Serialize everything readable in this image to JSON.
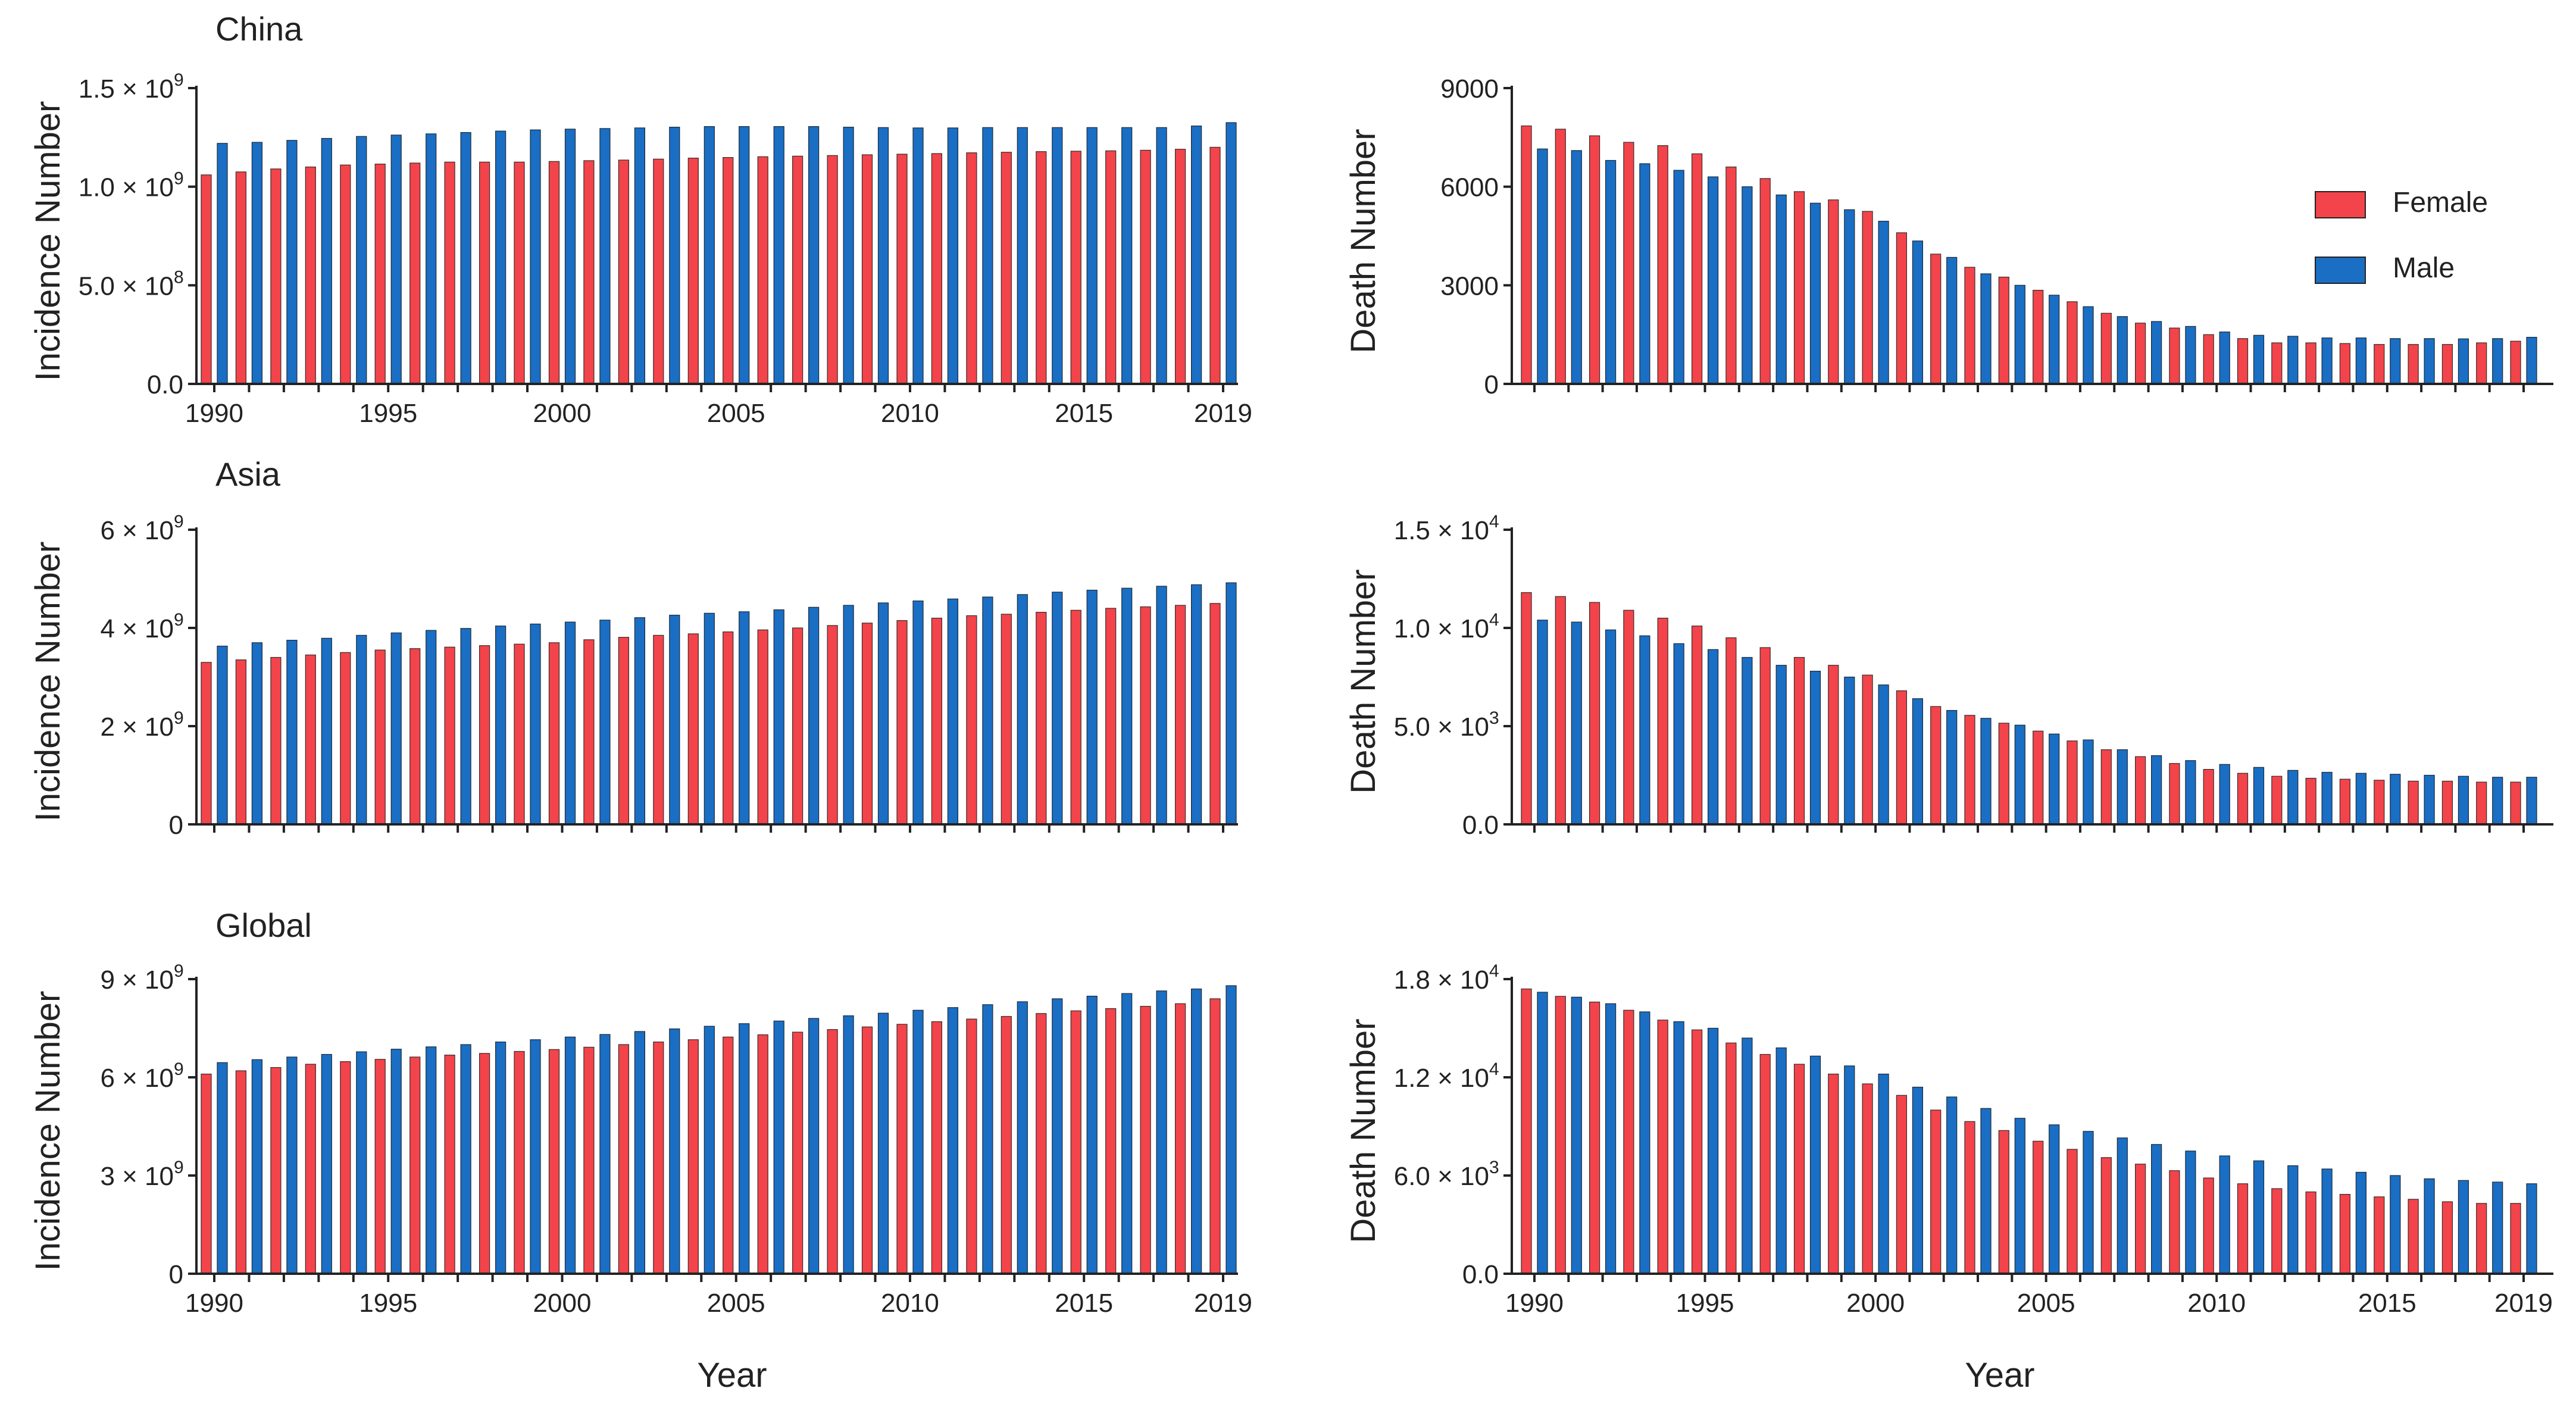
{
  "colors": {
    "female": "#f2444a",
    "male": "#1a6ec4",
    "axis": "#222222"
  },
  "legend": {
    "female": "Female",
    "male": "Male"
  },
  "x_axis_title": "Year",
  "chart_data": [
    {
      "type": "bar",
      "title": "China",
      "ylabel": "Incidence Number",
      "x": [
        1990,
        1991,
        1992,
        1993,
        1994,
        1995,
        1996,
        1997,
        1998,
        1999,
        2000,
        2001,
        2002,
        2003,
        2004,
        2005,
        2006,
        2007,
        2008,
        2009,
        2010,
        2011,
        2012,
        2013,
        2014,
        2015,
        2016,
        2017,
        2018,
        2019
      ],
      "x_ticks": [
        "1990",
        "1995",
        "2000",
        "2005",
        "2010",
        "2015",
        "2019"
      ],
      "ylim": [
        0,
        1500000000
      ],
      "y_ticks": [
        {
          "value": 0,
          "label": "0.0",
          "exp": ""
        },
        {
          "value": 500000000,
          "label": "5.0 × 10",
          "exp": "8"
        },
        {
          "value": 1000000000,
          "label": "1.0 × 10",
          "exp": "9"
        },
        {
          "value": 1500000000,
          "label": "1.5 × 10",
          "exp": "9"
        }
      ],
      "series": [
        {
          "name": "Female",
          "values": [
            1060000000,
            1075000000,
            1090000000,
            1100000000,
            1110000000,
            1115000000,
            1120000000,
            1125000000,
            1125000000,
            1125000000,
            1128000000,
            1132000000,
            1135000000,
            1140000000,
            1145000000,
            1148000000,
            1152000000,
            1155000000,
            1158000000,
            1162000000,
            1165000000,
            1168000000,
            1172000000,
            1175000000,
            1178000000,
            1180000000,
            1182000000,
            1185000000,
            1190000000,
            1200000000
          ]
        },
        {
          "name": "Male",
          "values": [
            1220000000,
            1225000000,
            1235000000,
            1245000000,
            1255000000,
            1262000000,
            1268000000,
            1275000000,
            1282000000,
            1288000000,
            1292000000,
            1295000000,
            1298000000,
            1302000000,
            1305000000,
            1305000000,
            1305000000,
            1305000000,
            1302000000,
            1300000000,
            1298000000,
            1298000000,
            1300000000,
            1300000000,
            1300000000,
            1300000000,
            1300000000,
            1300000000,
            1308000000,
            1325000000
          ]
        }
      ]
    },
    {
      "type": "bar",
      "title": "",
      "ylabel": "Death Number",
      "x": [
        1990,
        1991,
        1992,
        1993,
        1994,
        1995,
        1996,
        1997,
        1998,
        1999,
        2000,
        2001,
        2002,
        2003,
        2004,
        2005,
        2006,
        2007,
        2008,
        2009,
        2010,
        2011,
        2012,
        2013,
        2014,
        2015,
        2016,
        2017,
        2018,
        2019
      ],
      "x_ticks": [],
      "ylim": [
        0,
        9000
      ],
      "y_ticks": [
        {
          "value": 0,
          "label": "0",
          "exp": ""
        },
        {
          "value": 3000,
          "label": "3000",
          "exp": ""
        },
        {
          "value": 6000,
          "label": "6000",
          "exp": ""
        },
        {
          "value": 9000,
          "label": "9000",
          "exp": ""
        }
      ],
      "series": [
        {
          "name": "Female",
          "values": [
            7850,
            7750,
            7550,
            7350,
            7250,
            7000,
            6600,
            6250,
            5850,
            5600,
            5250,
            4600,
            3950,
            3550,
            3250,
            2850,
            2500,
            2150,
            1850,
            1700,
            1500,
            1380,
            1250,
            1250,
            1230,
            1200,
            1200,
            1200,
            1250,
            1300
          ]
        },
        {
          "name": "Male",
          "values": [
            7150,
            7100,
            6800,
            6700,
            6500,
            6300,
            6000,
            5750,
            5500,
            5300,
            4950,
            4350,
            3850,
            3350,
            3000,
            2700,
            2350,
            2050,
            1900,
            1750,
            1580,
            1480,
            1450,
            1400,
            1400,
            1380,
            1380,
            1370,
            1380,
            1420
          ]
        }
      ]
    },
    {
      "type": "bar",
      "title": "Asia",
      "ylabel": "Incidence Number",
      "x": [
        1990,
        1991,
        1992,
        1993,
        1994,
        1995,
        1996,
        1997,
        1998,
        1999,
        2000,
        2001,
        2002,
        2003,
        2004,
        2005,
        2006,
        2007,
        2008,
        2009,
        2010,
        2011,
        2012,
        2013,
        2014,
        2015,
        2016,
        2017,
        2018,
        2019
      ],
      "x_ticks": [],
      "ylim": [
        0,
        6000000000
      ],
      "y_ticks": [
        {
          "value": 0,
          "label": "0",
          "exp": ""
        },
        {
          "value": 2000000000,
          "label": "2 × 10",
          "exp": "9"
        },
        {
          "value": 4000000000,
          "label": "4 × 10",
          "exp": "9"
        },
        {
          "value": 6000000000,
          "label": "6 × 10",
          "exp": "9"
        }
      ],
      "series": [
        {
          "name": "Female",
          "values": [
            3300000000,
            3350000000,
            3400000000,
            3450000000,
            3500000000,
            3550000000,
            3580000000,
            3610000000,
            3640000000,
            3670000000,
            3700000000,
            3760000000,
            3810000000,
            3850000000,
            3880000000,
            3920000000,
            3960000000,
            4000000000,
            4050000000,
            4100000000,
            4150000000,
            4200000000,
            4250000000,
            4280000000,
            4320000000,
            4360000000,
            4400000000,
            4430000000,
            4460000000,
            4500000000
          ]
        },
        {
          "name": "Male",
          "values": [
            3630000000,
            3700000000,
            3750000000,
            3790000000,
            3850000000,
            3900000000,
            3950000000,
            3990000000,
            4040000000,
            4080000000,
            4120000000,
            4160000000,
            4210000000,
            4260000000,
            4300000000,
            4330000000,
            4370000000,
            4420000000,
            4460000000,
            4510000000,
            4550000000,
            4590000000,
            4630000000,
            4680000000,
            4730000000,
            4770000000,
            4810000000,
            4850000000,
            4880000000,
            4920000000
          ]
        }
      ]
    },
    {
      "type": "bar",
      "title": "",
      "ylabel": "Death Number",
      "x": [
        1990,
        1991,
        1992,
        1993,
        1994,
        1995,
        1996,
        1997,
        1998,
        1999,
        2000,
        2001,
        2002,
        2003,
        2004,
        2005,
        2006,
        2007,
        2008,
        2009,
        2010,
        2011,
        2012,
        2013,
        2014,
        2015,
        2016,
        2017,
        2018,
        2019
      ],
      "x_ticks": [],
      "ylim": [
        0,
        15000
      ],
      "y_ticks": [
        {
          "value": 0,
          "label": "0.0",
          "exp": ""
        },
        {
          "value": 5000,
          "label": "5.0 × 10",
          "exp": "3"
        },
        {
          "value": 10000,
          "label": "1.0 × 10",
          "exp": "4"
        },
        {
          "value": 15000,
          "label": "1.5 × 10",
          "exp": "4"
        }
      ],
      "series": [
        {
          "name": "Female",
          "values": [
            11800,
            11600,
            11300,
            10900,
            10500,
            10100,
            9500,
            9000,
            8500,
            8100,
            7600,
            6800,
            6000,
            5550,
            5150,
            4750,
            4250,
            3800,
            3450,
            3100,
            2800,
            2600,
            2450,
            2350,
            2300,
            2250,
            2200,
            2200,
            2150,
            2150
          ]
        },
        {
          "name": "Male",
          "values": [
            10400,
            10300,
            9900,
            9600,
            9200,
            8900,
            8500,
            8100,
            7800,
            7500,
            7100,
            6400,
            5800,
            5400,
            5050,
            4600,
            4300,
            3800,
            3500,
            3250,
            3050,
            2900,
            2750,
            2650,
            2600,
            2550,
            2500,
            2450,
            2400,
            2400
          ]
        }
      ]
    },
    {
      "type": "bar",
      "title": "Global",
      "ylabel": "Incidence Number",
      "x": [
        1990,
        1991,
        1992,
        1993,
        1994,
        1995,
        1996,
        1997,
        1998,
        1999,
        2000,
        2001,
        2002,
        2003,
        2004,
        2005,
        2006,
        2007,
        2008,
        2009,
        2010,
        2011,
        2012,
        2013,
        2014,
        2015,
        2016,
        2017,
        2018,
        2019
      ],
      "x_ticks": [
        "1990",
        "1995",
        "2000",
        "2005",
        "2010",
        "2015",
        "2019"
      ],
      "ylim": [
        0,
        9000000000
      ],
      "y_ticks": [
        {
          "value": 0,
          "label": "0",
          "exp": ""
        },
        {
          "value": 3000000000,
          "label": "3 × 10",
          "exp": "9"
        },
        {
          "value": 6000000000,
          "label": "6 × 10",
          "exp": "9"
        },
        {
          "value": 9000000000,
          "label": "9 × 10",
          "exp": "9"
        }
      ],
      "series": [
        {
          "name": "Female",
          "values": [
            6100000000,
            6200000000,
            6300000000,
            6400000000,
            6480000000,
            6550000000,
            6620000000,
            6680000000,
            6730000000,
            6790000000,
            6850000000,
            6920000000,
            7000000000,
            7080000000,
            7150000000,
            7230000000,
            7300000000,
            7380000000,
            7460000000,
            7540000000,
            7620000000,
            7700000000,
            7780000000,
            7860000000,
            7950000000,
            8030000000,
            8100000000,
            8170000000,
            8250000000,
            8400000000
          ]
        },
        {
          "name": "Male",
          "values": [
            6450000000,
            6540000000,
            6620000000,
            6700000000,
            6780000000,
            6860000000,
            6930000000,
            7000000000,
            7080000000,
            7150000000,
            7230000000,
            7310000000,
            7400000000,
            7480000000,
            7560000000,
            7640000000,
            7720000000,
            7800000000,
            7880000000,
            7960000000,
            8050000000,
            8130000000,
            8220000000,
            8310000000,
            8400000000,
            8480000000,
            8560000000,
            8640000000,
            8700000000,
            8800000000
          ]
        }
      ]
    },
    {
      "type": "bar",
      "title": "",
      "ylabel": "Death Number",
      "x": [
        1990,
        1991,
        1992,
        1993,
        1994,
        1995,
        1996,
        1997,
        1998,
        1999,
        2000,
        2001,
        2002,
        2003,
        2004,
        2005,
        2006,
        2007,
        2008,
        2009,
        2010,
        2011,
        2012,
        2013,
        2014,
        2015,
        2016,
        2017,
        2018,
        2019
      ],
      "x_ticks": [
        "1990",
        "1995",
        "2000",
        "2005",
        "2010",
        "2015",
        "2019"
      ],
      "ylim": [
        0,
        18000
      ],
      "y_ticks": [
        {
          "value": 0,
          "label": "0.0",
          "exp": ""
        },
        {
          "value": 6000,
          "label": "6.0 × 10",
          "exp": "3"
        },
        {
          "value": 12000,
          "label": "1.2 × 10",
          "exp": "4"
        },
        {
          "value": 18000,
          "label": "1.8 × 10",
          "exp": "4"
        }
      ],
      "series": [
        {
          "name": "Female",
          "values": [
            17400,
            16950,
            16600,
            16100,
            15500,
            14900,
            14100,
            13400,
            12800,
            12200,
            11600,
            10900,
            10000,
            9300,
            8750,
            8100,
            7600,
            7100,
            6700,
            6300,
            5850,
            5500,
            5200,
            5000,
            4850,
            4700,
            4550,
            4400,
            4300,
            4300
          ]
        },
        {
          "name": "Male",
          "values": [
            17200,
            16900,
            16500,
            16000,
            15400,
            15000,
            14400,
            13800,
            13300,
            12700,
            12200,
            11400,
            10800,
            10100,
            9500,
            9100,
            8700,
            8300,
            7900,
            7500,
            7200,
            6900,
            6600,
            6400,
            6200,
            6000,
            5800,
            5700,
            5600,
            5500
          ]
        }
      ]
    }
  ]
}
